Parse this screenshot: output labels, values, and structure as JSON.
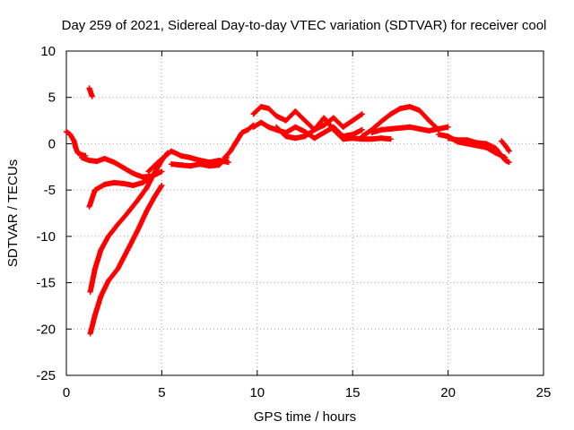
{
  "chart_data": {
    "type": "scatter",
    "title": "Day 259 of 2021, Sidereal Day-to-day VTEC variation (SDTVAR) for receiver cool",
    "xlabel": "GPS time / hours",
    "ylabel": "SDTVAR / TECUs",
    "xlim": [
      0,
      25
    ],
    "ylim": [
      -25,
      10
    ],
    "xticks": [
      "0",
      "5",
      "10",
      "15",
      "20",
      "25"
    ],
    "yticks": [
      "10",
      "5",
      "0",
      "-5",
      "-10",
      "-15",
      "-20",
      "-25"
    ],
    "grid": true,
    "marker": "plus",
    "colors": {
      "series": "#ff0000",
      "grid": "#a0a0a0",
      "axis": "#000000"
    },
    "series": [
      {
        "name": "early-small",
        "x": [
          0.0,
          0.2,
          0.4,
          0.5,
          0.6,
          0.8,
          1.0
        ],
        "y": [
          1.3,
          1.0,
          0.3,
          -0.5,
          -1.0,
          -1.2,
          -1.3
        ]
      },
      {
        "name": "early-band",
        "x": [
          0.8,
          1.2,
          1.6,
          2.0,
          2.5,
          3.0,
          3.5,
          4.0,
          4.5,
          5.0
        ],
        "y": [
          -1.5,
          -1.8,
          -1.9,
          -1.6,
          -2.0,
          -2.6,
          -3.2,
          -3.6,
          -3.5,
          -3.0
        ]
      },
      {
        "name": "spike",
        "x": [
          1.2,
          1.25,
          1.3,
          1.35
        ],
        "y": [
          6.0,
          5.7,
          5.4,
          5.1
        ]
      },
      {
        "name": "descending-a",
        "x": [
          1.2,
          1.5,
          2.0,
          2.5,
          3.0,
          3.5,
          4.0,
          4.3
        ],
        "y": [
          -6.8,
          -5.0,
          -4.4,
          -4.2,
          -4.3,
          -4.5,
          -4.2,
          -3.8
        ]
      },
      {
        "name": "steep-a",
        "x": [
          1.25,
          1.5,
          1.8,
          2.2,
          2.7,
          3.2,
          3.7,
          4.2,
          4.6,
          5.0,
          5.3
        ],
        "y": [
          -16.0,
          -13.5,
          -11.5,
          -10.0,
          -8.7,
          -7.5,
          -6.2,
          -4.8,
          -3.2,
          -1.8,
          -1.0
        ]
      },
      {
        "name": "steep-b",
        "x": [
          1.25,
          1.5,
          1.8,
          2.2,
          2.7,
          3.2,
          3.7,
          4.2,
          4.6,
          5.0
        ],
        "y": [
          -20.5,
          -18.5,
          -16.5,
          -14.8,
          -13.5,
          -11.5,
          -9.5,
          -7.3,
          -5.8,
          -4.5
        ]
      },
      {
        "name": "morning-flat",
        "x": [
          4.3,
          4.8,
          5.2,
          5.5,
          6.0,
          6.5,
          7.0,
          7.5,
          8.0,
          8.5
        ],
        "y": [
          -3.0,
          -2.0,
          -1.3,
          -0.8,
          -1.3,
          -1.5,
          -1.8,
          -2.0,
          -1.8,
          -2.0
        ]
      },
      {
        "name": "morning-low",
        "x": [
          5.5,
          6.0,
          6.5,
          7.0,
          7.5,
          8.0,
          8.4
        ],
        "y": [
          -2.2,
          -2.3,
          -2.4,
          -2.2,
          -2.4,
          -2.3,
          -1.5
        ]
      },
      {
        "name": "rise",
        "x": [
          8.3,
          8.6,
          8.9,
          9.2,
          9.5,
          9.8
        ],
        "y": [
          -1.5,
          -0.8,
          0.2,
          1.2,
          1.5,
          2.0
        ]
      },
      {
        "name": "daytime-upper",
        "x": [
          9.8,
          10.2,
          10.6,
          11.0,
          11.5,
          12.0,
          12.5,
          13.0,
          13.5,
          14.0,
          14.5,
          15.0,
          15.5
        ],
        "y": [
          3.2,
          4.0,
          3.8,
          3.0,
          2.5,
          3.5,
          2.5,
          1.5,
          2.0,
          2.8,
          1.8,
          2.5,
          3.2
        ]
      },
      {
        "name": "daytime-mid",
        "x": [
          9.8,
          10.2,
          10.6,
          11.0,
          11.5,
          12.0,
          12.5,
          13.0,
          13.5,
          14.0,
          14.5,
          15.0,
          15.5
        ],
        "y": [
          1.8,
          2.3,
          1.8,
          1.5,
          1.2,
          1.8,
          1.3,
          0.6,
          1.2,
          1.8,
          0.8,
          1.0,
          1.5
        ]
      },
      {
        "name": "daytime-low",
        "x": [
          11.0,
          11.5,
          12.0,
          12.5,
          13.0,
          13.5,
          14.0,
          14.5,
          15.0,
          15.5,
          16.0,
          16.5,
          17.0
        ],
        "y": [
          1.8,
          0.8,
          0.6,
          0.8,
          1.5,
          2.8,
          1.5,
          0.5,
          0.6,
          0.5,
          0.5,
          0.6,
          0.5
        ]
      },
      {
        "name": "afternoon-hump",
        "x": [
          15.5,
          16.0,
          16.5,
          17.0,
          17.5,
          18.0,
          18.5,
          19.0,
          19.5
        ],
        "y": [
          0.8,
          1.5,
          2.4,
          3.2,
          3.8,
          4.0,
          3.6,
          2.5,
          1.5
        ]
      },
      {
        "name": "afternoon-flat",
        "x": [
          16.0,
          16.5,
          17.0,
          17.5,
          18.0,
          18.5,
          19.0,
          19.5,
          20.0
        ],
        "y": [
          1.2,
          1.5,
          1.6,
          1.7,
          1.8,
          1.6,
          1.4,
          1.6,
          1.8
        ]
      },
      {
        "name": "evening-decline",
        "x": [
          19.5,
          20.0,
          20.5,
          21.0,
          21.5,
          22.0,
          22.5,
          23.0
        ],
        "y": [
          1.0,
          0.8,
          0.2,
          0.0,
          -0.2,
          -0.4,
          -1.0,
          -1.5
        ]
      },
      {
        "name": "evening-low",
        "x": [
          20.0,
          20.5,
          21.0,
          21.5,
          22.0,
          22.5,
          23.0,
          23.2
        ],
        "y": [
          0.6,
          0.4,
          0.4,
          0.1,
          0.0,
          -0.5,
          -1.8,
          -2.0
        ]
      },
      {
        "name": "late-tail",
        "x": [
          22.8,
          23.0,
          23.2
        ],
        "y": [
          0.3,
          -0.2,
          -0.8
        ]
      }
    ]
  }
}
